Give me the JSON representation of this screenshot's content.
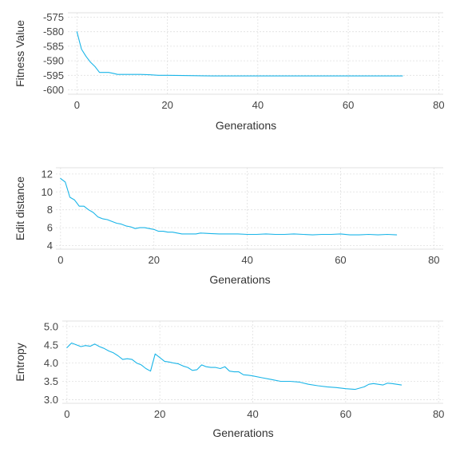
{
  "colors": {
    "line": "#1ab5e8",
    "grid": "#e0e0e0",
    "text": "#444444"
  },
  "chart_data": [
    {
      "type": "line",
      "xlabel": "Generations",
      "ylabel": "Fitness Value",
      "xlim": [
        -2,
        81
      ],
      "ylim": [
        -601.5,
        -573.5
      ],
      "xticks": [
        0,
        20,
        40,
        60,
        80
      ],
      "xtick_labels": [
        "0",
        "20",
        "40",
        "60",
        "80"
      ],
      "yticks": [
        -575,
        -580,
        -585,
        -590,
        -595,
        -600
      ],
      "ytick_labels": [
        "-575",
        "-580",
        "-585",
        "-590",
        "-595",
        "-600"
      ],
      "grid": true,
      "series": [
        {
          "x": [
            0,
            1,
            2,
            3,
            4,
            5,
            6,
            7,
            8,
            9,
            10,
            12,
            14,
            16,
            18,
            20,
            25,
            30,
            35,
            40,
            50,
            60,
            72
          ],
          "y": [
            -580,
            -586,
            -588.5,
            -590.5,
            -592,
            -594,
            -594,
            -594,
            -594.3,
            -594.7,
            -594.7,
            -594.7,
            -594.7,
            -594.8,
            -595,
            -595,
            -595.1,
            -595.2,
            -595.2,
            -595.2,
            -595.2,
            -595.2,
            -595.2
          ]
        }
      ]
    },
    {
      "type": "line",
      "xlabel": "Generations",
      "ylabel": "Edit distance",
      "xlim": [
        -1,
        82
      ],
      "ylim": [
        3.6,
        12.7
      ],
      "xticks": [
        0,
        20,
        40,
        60,
        80
      ],
      "xtick_labels": [
        "0",
        "20",
        "40",
        "60",
        "80"
      ],
      "yticks": [
        4,
        6,
        8,
        10,
        12
      ],
      "ytick_labels": [
        "4",
        "6",
        "8",
        "10",
        "12"
      ],
      "grid": true,
      "series": [
        {
          "x": [
            0,
            1,
            2,
            3,
            4,
            5,
            6,
            7,
            8,
            9,
            10,
            11,
            12,
            13,
            14,
            15,
            16,
            17,
            18,
            19,
            20,
            21,
            22,
            23,
            24,
            25,
            26,
            27,
            28,
            29,
            30,
            32,
            34,
            36,
            38,
            40,
            42,
            44,
            46,
            48,
            50,
            52,
            54,
            56,
            58,
            60,
            62,
            64,
            66,
            68,
            70,
            72
          ],
          "y": [
            11.5,
            11.1,
            9.4,
            9.1,
            8.4,
            8.4,
            8.0,
            7.7,
            7.2,
            7.0,
            6.9,
            6.7,
            6.5,
            6.4,
            6.2,
            6.1,
            5.9,
            6.0,
            6.0,
            5.9,
            5.8,
            5.6,
            5.6,
            5.5,
            5.5,
            5.4,
            5.3,
            5.3,
            5.3,
            5.3,
            5.4,
            5.35,
            5.3,
            5.3,
            5.3,
            5.25,
            5.25,
            5.3,
            5.25,
            5.25,
            5.3,
            5.25,
            5.2,
            5.25,
            5.25,
            5.3,
            5.2,
            5.2,
            5.25,
            5.2,
            5.25,
            5.2
          ]
        }
      ]
    },
    {
      "type": "line",
      "xlabel": "Generations",
      "ylabel": "Entropy",
      "xlim": [
        -1,
        81
      ],
      "ylim": [
        2.9,
        5.15
      ],
      "xticks": [
        0,
        20,
        40,
        60,
        80
      ],
      "xtick_labels": [
        "0",
        "20",
        "40",
        "60",
        "80"
      ],
      "yticks": [
        3.0,
        3.5,
        4.0,
        4.5,
        5.0
      ],
      "ytick_labels": [
        "3.0",
        "3.5",
        "4.0",
        "4.5",
        "5.0"
      ],
      "grid": true,
      "series": [
        {
          "x": [
            0,
            1,
            2,
            3,
            4,
            5,
            6,
            7,
            8,
            9,
            10,
            11,
            12,
            13,
            14,
            15,
            16,
            17,
            18,
            19,
            20,
            21,
            22,
            23,
            24,
            25,
            26,
            27,
            28,
            29,
            30,
            31,
            32,
            33,
            34,
            35,
            36,
            37,
            38,
            39,
            40,
            42,
            44,
            46,
            48,
            50,
            52,
            54,
            56,
            58,
            60,
            62,
            64,
            65,
            66,
            68,
            69,
            70,
            72
          ],
          "y": [
            4.42,
            4.55,
            4.5,
            4.45,
            4.48,
            4.46,
            4.52,
            4.45,
            4.4,
            4.33,
            4.28,
            4.2,
            4.1,
            4.12,
            4.1,
            4.0,
            3.95,
            3.85,
            3.78,
            4.25,
            4.15,
            4.05,
            4.03,
            4.0,
            3.98,
            3.92,
            3.88,
            3.8,
            3.82,
            3.95,
            3.9,
            3.88,
            3.88,
            3.85,
            3.9,
            3.78,
            3.76,
            3.76,
            3.68,
            3.67,
            3.65,
            3.6,
            3.55,
            3.5,
            3.5,
            3.48,
            3.42,
            3.38,
            3.35,
            3.33,
            3.3,
            3.28,
            3.35,
            3.42,
            3.44,
            3.4,
            3.45,
            3.44,
            3.4
          ]
        }
      ]
    }
  ]
}
